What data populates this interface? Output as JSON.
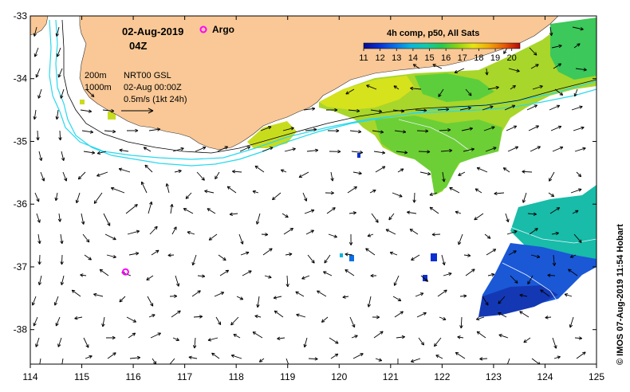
{
  "map": {
    "date": "02-Aug-2019",
    "time": "04Z",
    "argo_label": "Argo",
    "depth_200": "200m",
    "depth_1000": "1000m",
    "product": "NRT00 GSL",
    "product_time": "02-Aug 00:00Z",
    "vector_scale": "0.5m/s (1kt 24h)",
    "credit": "© IMOS 07-Aug-2019 11:54 Hobart"
  },
  "colorbar": {
    "title": "4h comp, p50, All Sats",
    "ticks": [
      "11",
      "12",
      "13",
      "14",
      "15",
      "16",
      "17",
      "18",
      "19",
      "20"
    ],
    "min": 11,
    "max": 20.5,
    "colors": [
      "#0a0a8c",
      "#0a2fd2",
      "#0a6fe6",
      "#0ab4dc",
      "#14c8aa",
      "#28c850",
      "#8cd214",
      "#e6e614",
      "#f0aa0a",
      "#e65a0a",
      "#b40a0a"
    ]
  },
  "axes": {
    "lon_ticks": [
      114,
      115,
      116,
      117,
      118,
      119,
      120,
      121,
      122,
      123,
      124,
      125
    ],
    "lat_ticks": [
      -33,
      -34,
      -35,
      -36,
      -37,
      -38
    ],
    "lon_range": [
      114,
      125
    ],
    "lat_range": [
      -38.55,
      -33
    ]
  },
  "argo_float": {
    "lon": 115.85,
    "lat": -37.08
  },
  "colors": {
    "land": "#f9c896",
    "contour_200": "#000000",
    "contour_1000": "#27d9ee",
    "argo": "#ff00ff"
  }
}
